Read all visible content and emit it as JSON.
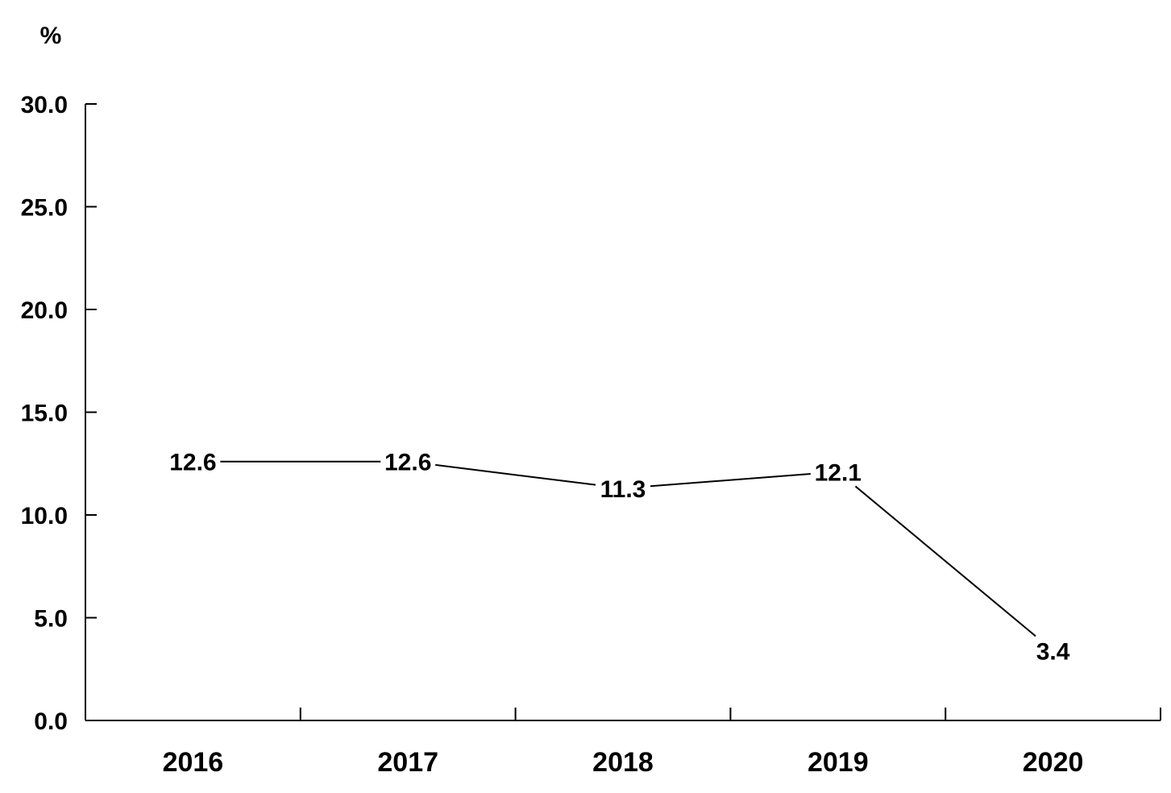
{
  "chart_data": {
    "type": "line",
    "title": "",
    "unit_label": "%",
    "xlabel": "",
    "ylabel": "",
    "categories": [
      "2016",
      "2017",
      "2018",
      "2019",
      "2020"
    ],
    "series": [
      {
        "values": [
          12.6,
          12.6,
          11.3,
          12.1,
          3.4
        ]
      }
    ],
    "data_labels": [
      "12.6",
      "12.6",
      "11.3",
      "12.1",
      "3.4"
    ],
    "ylim": [
      0,
      30
    ],
    "yticks": [
      0,
      5,
      10,
      15,
      20,
      25,
      30
    ],
    "ytick_labels": [
      "0.0",
      "5.0",
      "10.0",
      "15.0",
      "20.0",
      "25.0",
      "30.0"
    ],
    "grid": false,
    "legend": "none",
    "markers": "none",
    "line_color": "#000000"
  }
}
